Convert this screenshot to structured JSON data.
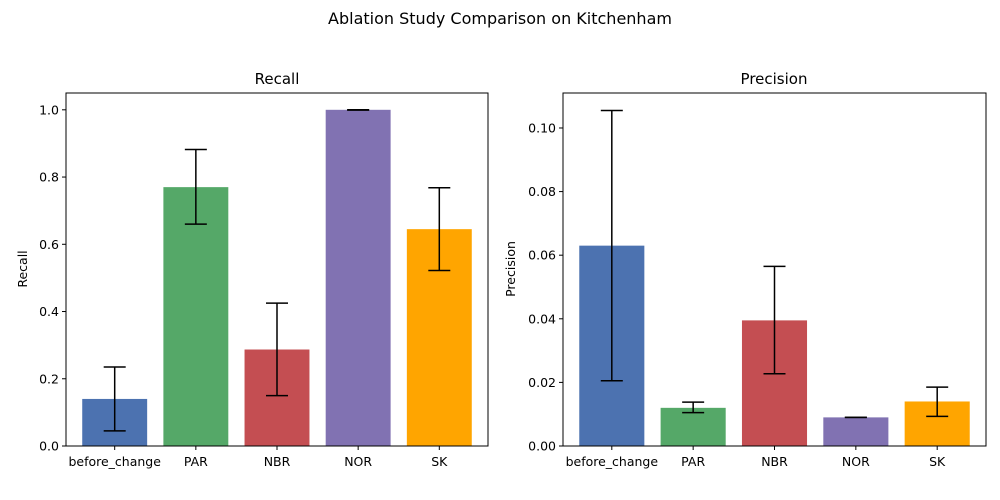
{
  "figure": {
    "title": "Ablation Study Comparison on Kitchenham"
  },
  "chart_data": [
    {
      "type": "bar",
      "title": "Recall",
      "xlabel": "",
      "ylabel": "Recall",
      "categories": [
        "before_change",
        "PAR",
        "NBR",
        "NOR",
        "SK"
      ],
      "values": [
        0.14,
        0.77,
        0.287,
        1.0,
        0.645
      ],
      "error_low": [
        0.045,
        0.66,
        0.15,
        0.999,
        0.522
      ],
      "error_high": [
        0.235,
        0.882,
        0.425,
        1.0,
        0.768
      ],
      "ylim": [
        0,
        1.05
      ],
      "yticks": [
        0.0,
        0.2,
        0.4,
        0.6,
        0.8,
        1.0
      ],
      "ytick_labels": [
        "0.0",
        "0.2",
        "0.4",
        "0.6",
        "0.8",
        "1.0"
      ],
      "colors": [
        "#4c72b0",
        "#55a868",
        "#c44e52",
        "#8172b2",
        "#ffa500"
      ],
      "grid": false
    },
    {
      "type": "bar",
      "title": "Precision",
      "xlabel": "",
      "ylabel": "Precision",
      "categories": [
        "before_change",
        "PAR",
        "NBR",
        "NOR",
        "SK"
      ],
      "values": [
        0.063,
        0.012,
        0.0395,
        0.009,
        0.014
      ],
      "error_low": [
        0.0205,
        0.0105,
        0.0227,
        0.009,
        0.0093
      ],
      "error_high": [
        0.1055,
        0.0138,
        0.0565,
        0.009,
        0.0185
      ],
      "ylim": [
        0,
        0.111
      ],
      "yticks": [
        0.0,
        0.02,
        0.04,
        0.06,
        0.08,
        0.1
      ],
      "ytick_labels": [
        "0.00",
        "0.02",
        "0.04",
        "0.06",
        "0.08",
        "0.10"
      ],
      "colors": [
        "#4c72b0",
        "#55a868",
        "#c44e52",
        "#8172b2",
        "#ffa500"
      ],
      "grid": false
    }
  ]
}
